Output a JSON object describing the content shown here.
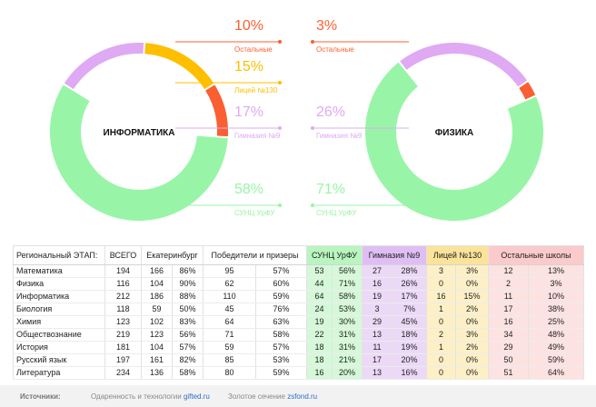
{
  "chart_data": [
    {
      "type": "pie",
      "center_label": "ИНФОРМАТИКА",
      "slices": [
        {
          "label": "СУНЦ УрФУ",
          "value": 58,
          "text": "58%",
          "color": "#98f5a7"
        },
        {
          "label": "Гимназия №9",
          "value": 17,
          "text": "17%",
          "color": "#dfa9f4"
        },
        {
          "label": "Лицей №130",
          "value": 15,
          "text": "15%",
          "color": "#fdbf00"
        },
        {
          "label": "Остальные",
          "value": 10,
          "text": "10%",
          "color": "#fa5f32"
        }
      ]
    },
    {
      "type": "pie",
      "center_label": "ФИЗИКА",
      "slices": [
        {
          "label": "СУНЦ УрФУ",
          "value": 71,
          "text": "71%",
          "color": "#98f5a7"
        },
        {
          "label": "Гимназия №9",
          "value": 26,
          "text": "26%",
          "color": "#dfa9f4"
        },
        {
          "label": "Остальные",
          "value": 3,
          "text": "3%",
          "color": "#fa5f32"
        }
      ]
    },
    {
      "type": "table",
      "headers": [
        "Региональный ЭТАП:",
        "ВСЕГО",
        "Екатеринбург",
        "Победители и призеры",
        "СУНЦ УрФУ",
        "Гимназия №9",
        "Лицей №130",
        "Остальные школы"
      ],
      "rows": [
        [
          "Математика",
          "194",
          "166",
          "86%",
          "95",
          "57%",
          "53",
          "56%",
          "27",
          "28%",
          "3",
          "3%",
          "12",
          "13%"
        ],
        [
          "Физика",
          "116",
          "104",
          "90%",
          "62",
          "60%",
          "44",
          "71%",
          "16",
          "26%",
          "0",
          "0%",
          "2",
          "3%"
        ],
        [
          "Информатика",
          "212",
          "186",
          "88%",
          "110",
          "59%",
          "64",
          "58%",
          "19",
          "17%",
          "16",
          "15%",
          "11",
          "10%"
        ],
        [
          "Биология",
          "118",
          "59",
          "50%",
          "45",
          "76%",
          "24",
          "53%",
          "3",
          "7%",
          "1",
          "2%",
          "17",
          "38%"
        ],
        [
          "Химия",
          "123",
          "102",
          "83%",
          "64",
          "63%",
          "19",
          "30%",
          "29",
          "45%",
          "0",
          "0%",
          "16",
          "25%"
        ],
        [
          "Обществознание",
          "219",
          "123",
          "56%",
          "71",
          "58%",
          "22",
          "31%",
          "13",
          "18%",
          "2",
          "3%",
          "34",
          "48%"
        ],
        [
          "История",
          "181",
          "104",
          "57%",
          "59",
          "57%",
          "18",
          "31%",
          "11",
          "19%",
          "1",
          "2%",
          "29",
          "49%"
        ],
        [
          "Русский язык",
          "197",
          "161",
          "82%",
          "85",
          "53%",
          "18",
          "21%",
          "17",
          "20%",
          "0",
          "0%",
          "50",
          "59%"
        ],
        [
          "Литература",
          "234",
          "136",
          "58%",
          "80",
          "59%",
          "16",
          "20%",
          "13",
          "16%",
          "0",
          "0%",
          "51",
          "64%"
        ]
      ]
    }
  ],
  "footer": {
    "sources_label": "Источники:",
    "source1_text": "Одаренность и технологии",
    "source1_link": "gifted.ru",
    "source2_text": "Золотое сечение",
    "source2_link": "zsfond.ru"
  }
}
